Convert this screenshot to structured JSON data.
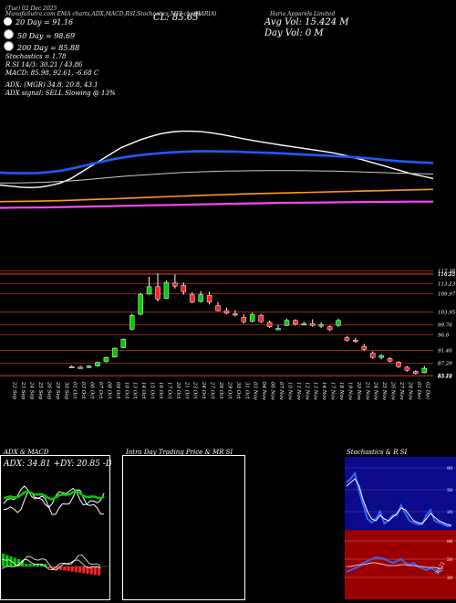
{
  "header": {
    "col1": "MunafaSutra.com EMA charts,ADX,MACD,RSI,Stochastics,MFI charts",
    "col2": "(HARIA)",
    "col3": "Haria Apparels Limited",
    "close": "CL: 85.65",
    "avg_vol": "Avg Vol: 15.424  M",
    "day_vol": "Day Vol: 0   M",
    "date": "(Tue) 02 Dec 2025"
  },
  "legend": {
    "ema20": "20  Day = 91.16",
    "ema50": "50  Day = 98.69",
    "ema200": "200  Day = 85.88",
    "stoch": "Stochastics = 1.78",
    "rsi": "R          SI 14/3: 30.21 / 43.86",
    "macd": "MACD: 85.98,  92.61,  -6.68  C",
    "adx": "ADX:                 (MGR) 34.8,  20.8,  43.1",
    "signal": "ADX  signal: SELL  Slowing @ 13%"
  },
  "colors": {
    "ema20": "#ffffff",
    "ema50": "#1e5bff",
    "ema200": "#ff9a1e",
    "ema_long": "#ff44ff",
    "up": "#00cc00",
    "down": "#ff2222",
    "grid": "#8b2a18",
    "adx_line": "#00cc00",
    "stoch_bg": "#0a0a8a",
    "rsi_bg": "#9b0000"
  },
  "price_labels": [
    "117.38",
    "116.53",
    "116.25",
    "113.23",
    "109.97",
    "103.95",
    "99.76",
    "96.6",
    "91.46",
    "87.29",
    "83.29",
    "83.19",
    "83.12"
  ],
  "dates": [
    "22 Sep",
    "23 Sep",
    "24 Sep",
    "25 Sep",
    "26 Sep",
    "29 Sep",
    "30 Sep",
    "01 Oct",
    "03 Oct",
    "06 Oct",
    "07 Oct",
    "08 Oct",
    "09 Oct",
    "10 Oct",
    "13 Oct",
    "14 Oct",
    "15 Oct",
    "16 Oct",
    "17 Oct",
    "20 Oct",
    "21 Oct",
    "23 Oct",
    "24 Oct",
    "27 Oct",
    "28 Oct",
    "29 Oct",
    "30 Oct",
    "31 Oct",
    "03 Nov",
    "04 Nov",
    "06 Nov",
    "07 Nov",
    "10 Nov",
    "11 Nov",
    "12 Nov",
    "13 Nov",
    "14 Nov",
    "17 Nov",
    "18 Nov",
    "19 Nov",
    "20 Nov",
    "21 Nov",
    "24 Nov",
    "25 Nov",
    "26 Nov",
    "27 Nov",
    "28 Nov",
    "01 Dec",
    "02 Dec"
  ],
  "panels": {
    "adx_title": "ADX  & MACD",
    "adx_values": "ADX: 34.81 +DY: 20.85 -DY: 43.11",
    "intraday_title": "Intra Day Trading Price  & MR                SI",
    "stoch_title": "Stochastics & R                SI",
    "stoch_ticks": [
      "80",
      "50",
      "20"
    ],
    "rsi_ticks": [
      "80",
      "50",
      "20"
    ],
    "rsi_value": "30.21"
  },
  "chart_data": [
    {
      "type": "candlestick",
      "title": "Haria Apparels Limited (HARIA) daily candles",
      "dates": [
        "01 Oct",
        "03 Oct",
        "06 Oct",
        "07 Oct",
        "08 Oct",
        "09 Oct",
        "10 Oct",
        "13 Oct",
        "14 Oct",
        "15 Oct",
        "16 Oct",
        "17 Oct",
        "20 Oct",
        "21 Oct",
        "23 Oct",
        "24 Oct",
        "27 Oct",
        "28 Oct",
        "29 Oct",
        "30 Oct",
        "31 Oct",
        "03 Nov",
        "04 Nov",
        "06 Nov",
        "07 Nov",
        "10 Nov",
        "11 Nov",
        "12 Nov",
        "13 Nov",
        "14 Nov",
        "17 Nov",
        "18 Nov",
        "19 Nov",
        "20 Nov",
        "21 Nov",
        "24 Nov",
        "25 Nov",
        "26 Nov",
        "27 Nov",
        "28 Nov",
        "01 Dec",
        "02 Dec"
      ],
      "candles": [
        {
          "o": 86.2,
          "h": 86.6,
          "l": 85.8,
          "c": 86.0
        },
        {
          "o": 86.0,
          "h": 86.4,
          "l": 85.6,
          "c": 85.9
        },
        {
          "o": 85.9,
          "h": 86.6,
          "l": 85.7,
          "c": 86.4
        },
        {
          "o": 86.4,
          "h": 87.8,
          "l": 86.2,
          "c": 87.6
        },
        {
          "o": 87.8,
          "h": 89.4,
          "l": 87.6,
          "c": 89.2
        },
        {
          "o": 89.3,
          "h": 92.4,
          "l": 89.2,
          "c": 92.2
        },
        {
          "o": 92.4,
          "h": 95.3,
          "l": 92.2,
          "c": 95.1
        },
        {
          "o": 98.4,
          "h": 103.4,
          "l": 98.0,
          "c": 102.8
        },
        {
          "o": 103.2,
          "h": 110.2,
          "l": 103.0,
          "c": 109.6
        },
        {
          "o": 109.8,
          "h": 115.4,
          "l": 109.6,
          "c": 112.2
        },
        {
          "o": 112.2,
          "h": 116.5,
          "l": 107.4,
          "c": 108.2
        },
        {
          "o": 108.4,
          "h": 114.2,
          "l": 108.2,
          "c": 113.6
        },
        {
          "o": 113.4,
          "h": 116.2,
          "l": 111.6,
          "c": 112.4
        },
        {
          "o": 112.6,
          "h": 113.6,
          "l": 109.6,
          "c": 110.6
        },
        {
          "o": 109.6,
          "h": 110.4,
          "l": 106.8,
          "c": 107.2
        },
        {
          "o": 107.4,
          "h": 110.8,
          "l": 107.0,
          "c": 109.6
        },
        {
          "o": 109.4,
          "h": 110.6,
          "l": 106.4,
          "c": 107.2
        },
        {
          "o": 106.0,
          "h": 107.2,
          "l": 104.2,
          "c": 104.4
        },
        {
          "o": 104.4,
          "h": 105.4,
          "l": 103.2,
          "c": 103.6
        },
        {
          "o": 103.4,
          "h": 104.6,
          "l": 102.6,
          "c": 103.0
        },
        {
          "o": 102.2,
          "h": 103.2,
          "l": 100.2,
          "c": 100.8
        },
        {
          "o": 101.0,
          "h": 103.8,
          "l": 100.6,
          "c": 103.2
        },
        {
          "o": 102.8,
          "h": 103.4,
          "l": 100.4,
          "c": 100.8
        },
        {
          "o": 100.6,
          "h": 101.2,
          "l": 98.8,
          "c": 99.2
        },
        {
          "o": 98.6,
          "h": 99.8,
          "l": 98.2,
          "c": 98.6
        },
        {
          "o": 99.6,
          "h": 101.8,
          "l": 99.4,
          "c": 101.2
        },
        {
          "o": 101.2,
          "h": 101.6,
          "l": 99.6,
          "c": 100.0
        },
        {
          "o": 100.2,
          "h": 100.8,
          "l": 99.8,
          "c": 100.2
        },
        {
          "o": 100.2,
          "h": 101.6,
          "l": 99.2,
          "c": 99.6
        },
        {
          "o": 99.4,
          "h": 100.6,
          "l": 98.8,
          "c": 99.8
        },
        {
          "o": 99.2,
          "h": 99.6,
          "l": 97.8,
          "c": 98.2
        },
        {
          "o": 99.6,
          "h": 101.8,
          "l": 99.2,
          "c": 101.2
        },
        {
          "o": 95.6,
          "h": 96.2,
          "l": 94.4,
          "c": 94.8
        },
        {
          "o": 94.8,
          "h": 95.6,
          "l": 94.0,
          "c": 94.4
        },
        {
          "o": 92.8,
          "h": 93.6,
          "l": 91.4,
          "c": 91.8
        },
        {
          "o": 90.6,
          "h": 91.2,
          "l": 88.8,
          "c": 89.2
        },
        {
          "o": 89.2,
          "h": 90.2,
          "l": 88.6,
          "c": 89.8
        },
        {
          "o": 88.8,
          "h": 89.2,
          "l": 87.6,
          "c": 88.0
        },
        {
          "o": 87.6,
          "h": 88.0,
          "l": 85.8,
          "c": 86.2
        },
        {
          "o": 86.0,
          "h": 86.4,
          "l": 84.6,
          "c": 85.0
        },
        {
          "o": 84.6,
          "h": 85.0,
          "l": 83.6,
          "c": 84.0
        },
        {
          "o": 84.2,
          "h": 86.4,
          "l": 84.0,
          "c": 85.65
        }
      ],
      "ylim": [
        83.0,
        117.5
      ]
    },
    {
      "type": "line",
      "title": "EMA lines",
      "series": [
        {
          "name": "20 Day",
          "values": [
            88,
            87.5,
            87,
            86.8,
            87,
            87.8,
            89,
            91,
            94,
            97,
            100,
            103,
            106,
            108,
            110,
            111.5,
            112.8,
            113.6,
            114,
            114,
            113.8,
            113.2,
            112.4,
            111.5,
            110.5,
            109.6,
            108.8,
            108,
            107.2,
            106.5,
            105.8,
            105.1,
            104.4,
            103.6,
            102.6,
            101.4,
            100.2,
            98.8,
            97.4,
            96,
            94.6,
            93.2,
            92.2,
            91.16
          ]
        },
        {
          "name": "50 Day",
          "values": [
            94,
            93.8,
            93.7,
            93.8,
            94.3,
            95,
            96.2,
            97.6,
            99,
            100.3,
            101.4,
            102.2,
            102.9,
            103.4,
            103.8,
            104.1,
            104.3,
            104.3,
            104.2,
            104.1,
            103.9,
            103.7,
            103.5,
            103.2,
            102.9,
            102.6,
            102.3,
            102,
            101.7,
            101.3,
            100.8,
            100.2,
            99.6,
            99.2,
            98.9,
            98.69
          ]
        },
        {
          "name": "100 Day",
          "values": [
            89,
            89,
            89.1,
            89.3,
            89.6,
            90,
            90.5,
            91.1,
            91.7,
            92.3,
            92.8,
            93.2,
            93.6,
            94,
            94.3,
            94.5,
            94.7,
            94.8,
            94.9,
            95,
            95,
            95,
            94.9,
            94.8,
            94.7,
            94.5,
            94.3,
            94.1,
            93.9,
            93.7,
            93.5,
            93.3
          ]
        },
        {
          "name": "200 Day",
          "values": [
            80,
            80.1,
            80.2,
            80.4,
            80.6,
            80.9,
            81.2,
            81.5,
            81.9,
            82.2,
            82.5,
            82.8,
            83.1,
            83.4,
            83.7,
            83.9,
            84.1,
            84.3,
            84.5,
            84.7,
            84.9,
            85.1,
            85.3,
            85.5,
            85.7,
            85.88
          ]
        },
        {
          "name": "Long",
          "values": [
            77,
            77.1,
            77.2,
            77.4,
            77.6,
            77.8,
            78,
            78.2,
            78.4,
            78.6,
            78.8,
            79,
            79.2,
            79.4,
            79.5,
            79.6,
            79.7,
            79.8,
            79.9,
            80,
            80
          ]
        }
      ]
    }
  ]
}
